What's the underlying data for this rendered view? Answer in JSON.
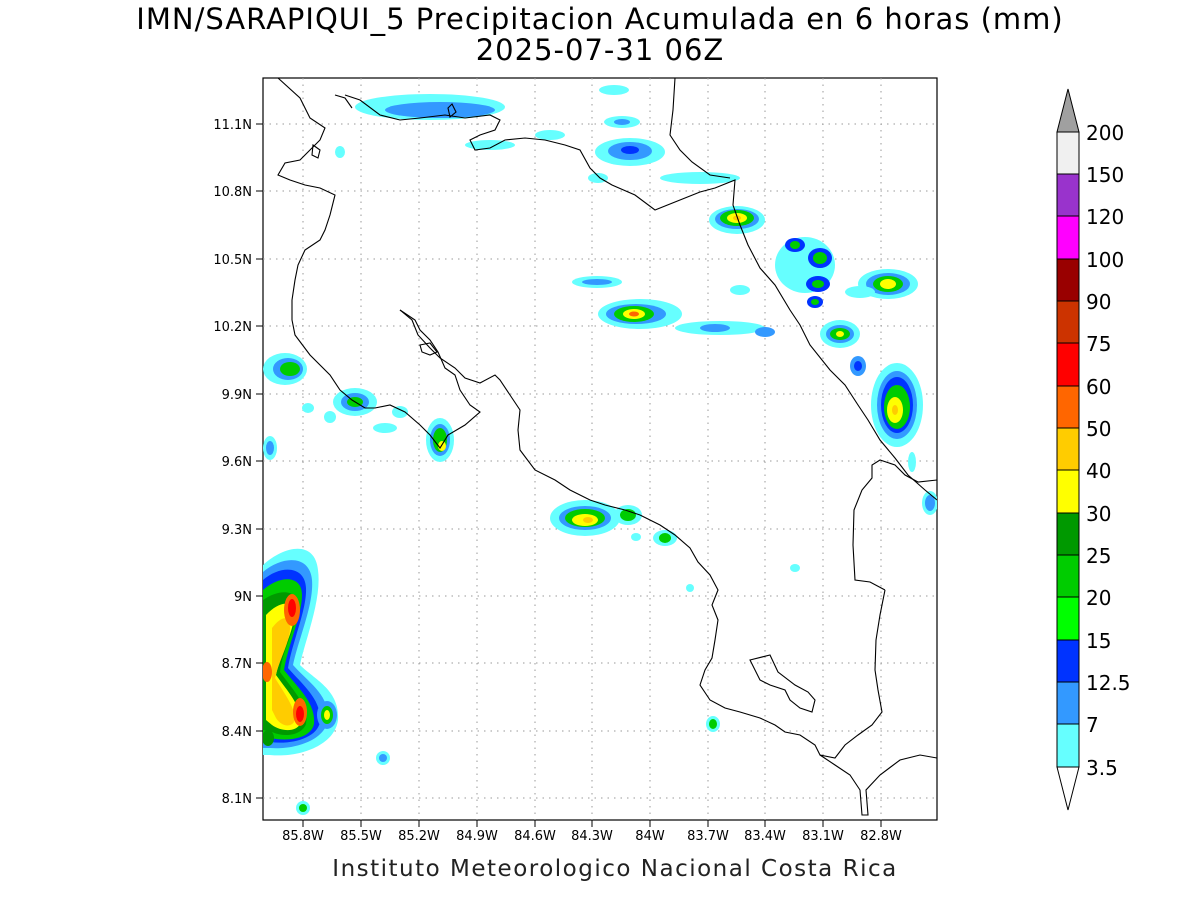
{
  "title": {
    "line1": "IMN/SARAPIQUI_5 Precipitacion Acumulada en 6 horas (mm)",
    "line2": "2025-07-31 06Z"
  },
  "footer": "Instituto Meteorologico Nacional Costa Rica",
  "map": {
    "lat_labels": [
      "11.1N",
      "10.8N",
      "10.5N",
      "10.2N",
      "9.9N",
      "9.6N",
      "9.3N",
      "9N",
      "8.7N",
      "8.4N",
      "8.1N"
    ],
    "lon_labels": [
      "85.8W",
      "85.5W",
      "85.2W",
      "84.9W",
      "84.6W",
      "84.3W",
      "84W",
      "83.7W",
      "83.4W",
      "82.8W"
    ],
    "lon_labels_all": [
      "85.8W",
      "85.5W",
      "85.2W",
      "84.9W",
      "84.6W",
      "84.3W",
      "84W",
      "83.7W",
      "83.4W",
      "83.1W",
      "82.8W"
    ],
    "grid": "dotted",
    "variable": "6-hour accumulated precipitation (mm)"
  },
  "colorbar": {
    "levels": [
      "3.5",
      "7",
      "12.5",
      "15",
      "20",
      "25",
      "30",
      "40",
      "50",
      "60",
      "75",
      "90",
      "100",
      "120",
      "150",
      "200"
    ],
    "colors": [
      "#66ffff",
      "#3399ff",
      "#0033ff",
      "#00ff00",
      "#00cc00",
      "#009900",
      "#ffff00",
      "#ffcc00",
      "#ff6600",
      "#ff0000",
      "#cc3300",
      "#990000",
      "#ff00ff",
      "#9933cc",
      "#f0f0f0",
      "#a0a0a0"
    ]
  },
  "palette": {
    "c35": "#66ffff",
    "c7": "#3399ff",
    "c12": "#0033ff",
    "c15": "#00ff00",
    "c20": "#00cc00",
    "c25": "#009900",
    "c30": "#ffff00",
    "c40": "#ffcc00",
    "c50": "#ff6600",
    "c60": "#ff0000",
    "c75": "#cc3300"
  }
}
